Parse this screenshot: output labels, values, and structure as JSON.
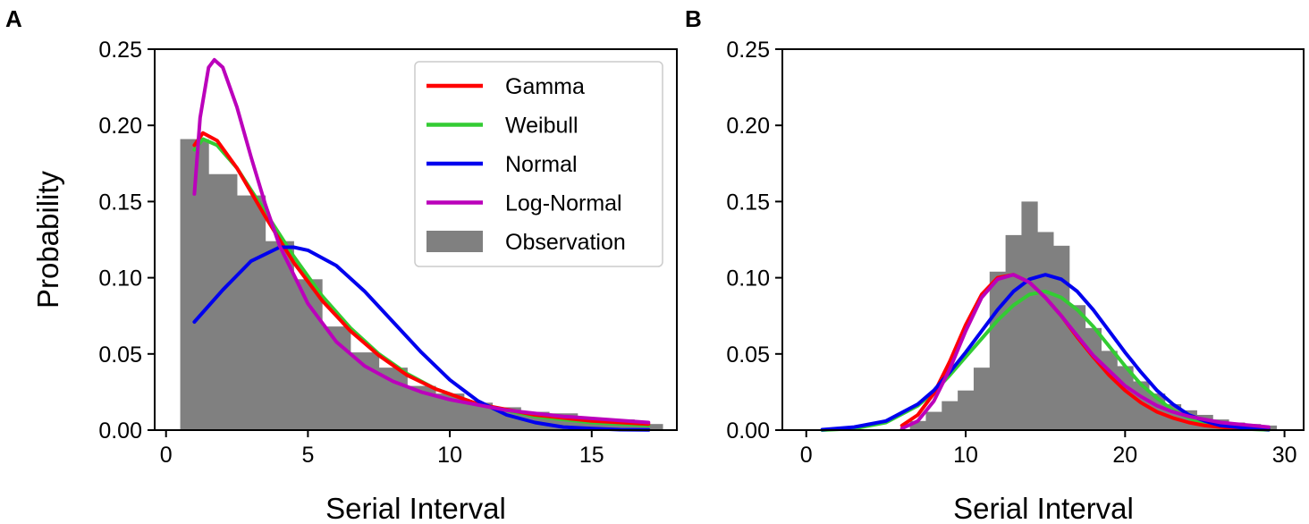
{
  "figure": {
    "panel_letters": [
      "A",
      "B"
    ]
  },
  "colors": {
    "Gamma": "#ff0000",
    "Weibull": "#33cc33",
    "Normal": "#0000ee",
    "Log-Normal": "#bb00bb",
    "Observation": "#808080"
  },
  "chart_data": [
    {
      "panel": "A",
      "type": "bar",
      "title": "",
      "xlabel": "Serial Interval",
      "ylabel": "Probability",
      "xlim": [
        -0.4,
        18.0
      ],
      "ylim": [
        0,
        0.25
      ],
      "xticks": [
        "0",
        "5",
        "10",
        "15"
      ],
      "yticks": [
        "0.00",
        "0.05",
        "0.10",
        "0.15",
        "0.20",
        "0.25"
      ],
      "legend": {
        "placement": "top-right",
        "entries": [
          "Gamma",
          "Weibull",
          "Normal",
          "Log-Normal",
          "Observation"
        ]
      },
      "histogram": {
        "name": "Observation",
        "bin_edges": [
          0.5,
          1.5,
          2.5,
          3.5,
          4.5,
          5.5,
          6.5,
          7.5,
          8.5,
          9.5,
          10.5,
          11.5,
          12.5,
          13.5,
          14.5,
          15.5,
          16.5,
          17.5
        ],
        "values": [
          0.191,
          0.168,
          0.154,
          0.124,
          0.099,
          0.068,
          0.051,
          0.041,
          0.029,
          0.024,
          0.018,
          0.015,
          0.012,
          0.011,
          0.008,
          0.007,
          0.004
        ]
      },
      "series": [
        {
          "name": "Gamma",
          "x": [
            1.0,
            1.3,
            1.8,
            2.5,
            3.5,
            4.5,
            5.5,
            6.5,
            7.5,
            8.5,
            9.5,
            11.0,
            13.0,
            15.0,
            17.0
          ],
          "values": [
            0.187,
            0.195,
            0.19,
            0.172,
            0.14,
            0.11,
            0.085,
            0.065,
            0.049,
            0.036,
            0.027,
            0.017,
            0.01,
            0.006,
            0.004
          ]
        },
        {
          "name": "Weibull",
          "x": [
            1.0,
            1.3,
            1.8,
            2.5,
            3.5,
            4.5,
            5.5,
            6.5,
            7.5,
            8.5,
            9.5,
            11.0,
            13.0,
            15.0,
            17.0
          ],
          "values": [
            0.184,
            0.191,
            0.187,
            0.172,
            0.143,
            0.114,
            0.088,
            0.067,
            0.05,
            0.037,
            0.027,
            0.017,
            0.009,
            0.005,
            0.003
          ]
        },
        {
          "name": "Normal",
          "x": [
            1.0,
            2.0,
            3.0,
            4.0,
            4.5,
            5.0,
            6.0,
            7.0,
            8.0,
            9.0,
            10.0,
            11.0,
            12.0,
            13.0,
            14.0,
            15.0,
            16.0,
            17.0
          ],
          "values": [
            0.071,
            0.092,
            0.111,
            0.12,
            0.12,
            0.118,
            0.108,
            0.091,
            0.071,
            0.051,
            0.033,
            0.019,
            0.01,
            0.005,
            0.002,
            0.001,
            0.0003,
            0.0001
          ]
        },
        {
          "name": "Log-Normal",
          "x": [
            1.0,
            1.2,
            1.5,
            1.7,
            2.0,
            2.5,
            3.0,
            3.5,
            4.0,
            5.0,
            6.0,
            7.0,
            8.0,
            9.0,
            10.0,
            12.0,
            14.0,
            17.0
          ],
          "values": [
            0.155,
            0.205,
            0.238,
            0.243,
            0.238,
            0.212,
            0.179,
            0.148,
            0.121,
            0.083,
            0.058,
            0.042,
            0.032,
            0.025,
            0.02,
            0.013,
            0.009,
            0.005
          ]
        }
      ]
    },
    {
      "panel": "B",
      "type": "bar",
      "title": "",
      "xlabel": "Serial Interval",
      "ylabel": "",
      "xlim": [
        -1.5,
        31.2
      ],
      "ylim": [
        0,
        0.25
      ],
      "xticks": [
        "0",
        "10",
        "20",
        "30"
      ],
      "yticks": [
        "0.00",
        "0.05",
        "0.10",
        "0.15",
        "0.20",
        "0.25"
      ],
      "legend": null,
      "histogram": {
        "name": "Observation",
        "bin_edges": [
          6.5,
          7.5,
          8.5,
          9.5,
          10.5,
          11.5,
          12.5,
          13.5,
          14.5,
          15.5,
          16.5,
          17.5,
          18.5,
          19.5,
          20.5,
          21.5,
          22.5,
          23.5,
          24.5,
          25.5,
          26.5,
          27.5,
          28.5,
          29.5
        ],
        "values": [
          0.006,
          0.012,
          0.019,
          0.026,
          0.041,
          0.104,
          0.128,
          0.15,
          0.13,
          0.121,
          0.082,
          0.067,
          0.052,
          0.042,
          0.032,
          0.024,
          0.017,
          0.013,
          0.01,
          0.007,
          0.005,
          0.004,
          0.003
        ]
      },
      "series": [
        {
          "name": "Gamma",
          "x": [
            6.0,
            7.0,
            8.0,
            9.0,
            10.0,
            11.0,
            12.0,
            13.0,
            14.0,
            15.0,
            16.0,
            17.0,
            18.0,
            19.0,
            20.0,
            21.0,
            22.0,
            23.0,
            24.0,
            25.0,
            26.0,
            27.0,
            29.0
          ],
          "values": [
            0.003,
            0.01,
            0.024,
            0.045,
            0.069,
            0.089,
            0.1,
            0.102,
            0.097,
            0.087,
            0.075,
            0.061,
            0.048,
            0.036,
            0.026,
            0.018,
            0.012,
            0.008,
            0.005,
            0.003,
            0.002,
            0.001,
            0.0005
          ]
        },
        {
          "name": "Weibull",
          "x": [
            1.0,
            3.0,
            5.0,
            7.0,
            8.0,
            9.0,
            10.0,
            11.0,
            12.0,
            13.0,
            14.0,
            15.0,
            16.0,
            17.0,
            18.0,
            19.0,
            20.0,
            21.0,
            22.0,
            23.0,
            24.0,
            25.0,
            26.0,
            27.0,
            29.0
          ],
          "values": [
            0.0,
            0.001,
            0.005,
            0.016,
            0.025,
            0.036,
            0.048,
            0.06,
            0.072,
            0.082,
            0.089,
            0.091,
            0.087,
            0.079,
            0.068,
            0.055,
            0.042,
            0.03,
            0.021,
            0.013,
            0.008,
            0.004,
            0.002,
            0.001,
            0.0001
          ]
        },
        {
          "name": "Normal",
          "x": [
            1.0,
            3.0,
            5.0,
            7.0,
            8.0,
            9.0,
            10.0,
            11.0,
            12.0,
            13.0,
            14.0,
            15.0,
            16.0,
            17.0,
            18.0,
            19.0,
            20.0,
            21.0,
            22.0,
            23.0,
            24.0,
            25.0,
            26.0,
            27.0,
            29.0
          ],
          "values": [
            0.0003,
            0.002,
            0.006,
            0.017,
            0.026,
            0.038,
            0.051,
            0.065,
            0.079,
            0.091,
            0.099,
            0.102,
            0.099,
            0.091,
            0.079,
            0.065,
            0.051,
            0.038,
            0.026,
            0.017,
            0.01,
            0.006,
            0.003,
            0.002,
            0.0003
          ]
        },
        {
          "name": "Log-Normal",
          "x": [
            6.0,
            7.0,
            8.0,
            9.0,
            10.0,
            11.0,
            12.0,
            13.0,
            14.0,
            15.0,
            16.0,
            17.0,
            18.0,
            19.0,
            20.0,
            21.0,
            22.0,
            23.0,
            24.0,
            25.0,
            26.0,
            27.0,
            29.0
          ],
          "values": [
            0.001,
            0.006,
            0.019,
            0.04,
            0.065,
            0.087,
            0.099,
            0.102,
            0.097,
            0.087,
            0.075,
            0.062,
            0.049,
            0.039,
            0.029,
            0.022,
            0.016,
            0.012,
            0.009,
            0.007,
            0.005,
            0.004,
            0.002
          ]
        }
      ]
    }
  ]
}
